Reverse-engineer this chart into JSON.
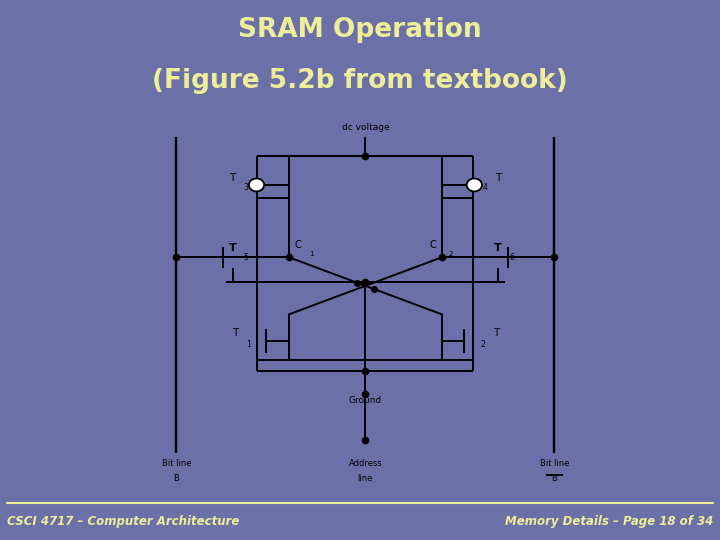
{
  "title_line1": "SRAM Operation",
  "title_line2": "(Figure 5.2b from textbook)",
  "title_color": "#eeee99",
  "bg_color": "#6b70a8",
  "footer_left": "CSCI 4717 – Computer Architecture",
  "footer_right": "Memory Details – Page 18 of 34",
  "footer_color": "#eeee99",
  "diagram_bg": "#ffffff",
  "line_color": "#000000",
  "label_T3": "T",
  "label_T3_sub": "3",
  "label_T4": "T",
  "label_T4_sub": "4",
  "label_T5": "T",
  "label_T5_sub": "5",
  "label_T6": "T",
  "label_T6_sub": "6",
  "label_T1": "T",
  "label_T1_sub": "1",
  "label_T2": "T",
  "label_T2_sub": "2",
  "label_C1": "C",
  "label_C1_sub": "1",
  "label_C2": "C",
  "label_C2_sub": "2",
  "label_dc": "dc voltage",
  "label_ground": "Ground",
  "label_bitline_left1": "Bit line",
  "label_bitline_left2": "B",
  "label_bitline_right1": "Bit line",
  "label_bitline_right2": "B",
  "label_address1": "Address",
  "label_address2": "line",
  "footer_line_color": "#eeee99"
}
